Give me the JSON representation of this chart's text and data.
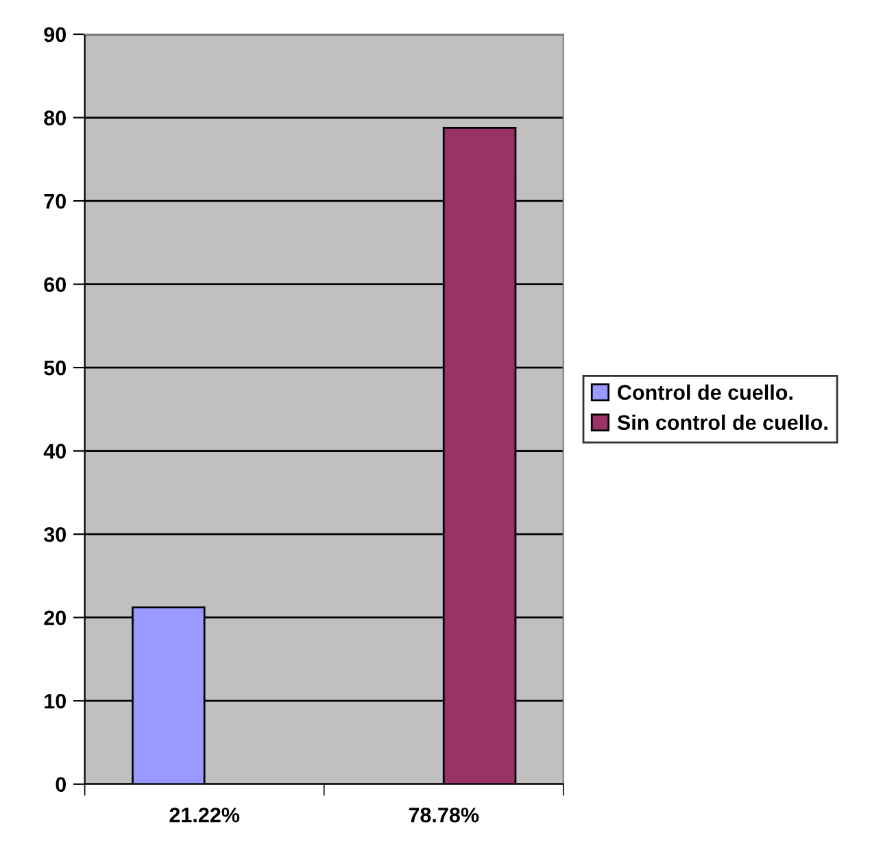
{
  "chart_data": {
    "type": "bar",
    "categories": [
      "21.22%",
      "78.78%"
    ],
    "series": [
      {
        "name": "Control de cuello.",
        "color": "#9999ff",
        "values": [
          21.22,
          null
        ]
      },
      {
        "name": "Sin control de cuello.",
        "color": "#993366",
        "values": [
          null,
          78.78
        ]
      }
    ],
    "ylim": [
      0,
      90
    ],
    "yticks": [
      0,
      10,
      20,
      30,
      40,
      50,
      60,
      70,
      80,
      90
    ],
    "grid": "y",
    "legend": "right"
  }
}
